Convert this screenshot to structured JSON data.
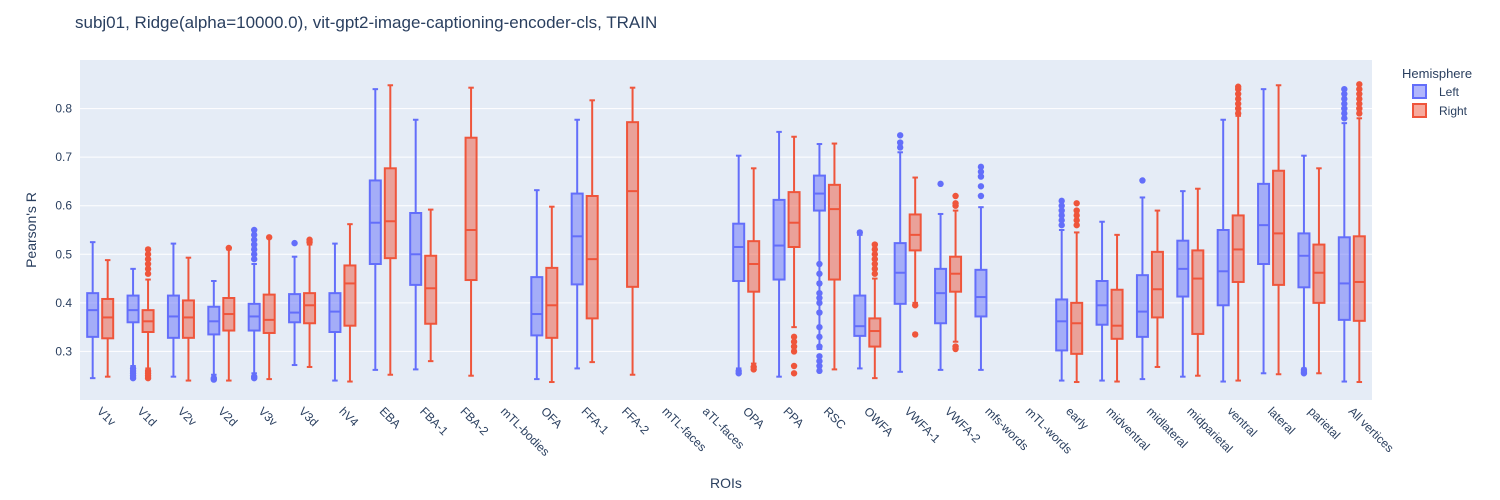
{
  "chart_data": {
    "type": "box",
    "title": "subj01, Ridge(alpha=10000.0), vit-gpt2-image-captioning-encoder-cls, TRAIN",
    "xlabel": "ROIs",
    "ylabel": "Pearson's R",
    "ylim": [
      0.2,
      0.9
    ],
    "yticks": [
      0.3,
      0.4,
      0.5,
      0.6,
      0.7,
      0.8
    ],
    "ytick_labels": [
      "0.3",
      "0.4",
      "0.5",
      "0.6",
      "0.7",
      "0.8"
    ],
    "grid": true,
    "legend": {
      "title": "Hemisphere",
      "position": "top-right"
    },
    "categories": [
      "V1v",
      "V1d",
      "V2v",
      "V2d",
      "V3v",
      "V3d",
      "hV4",
      "EBA",
      "FBA-1",
      "FBA-2",
      "mTL-bodies",
      "OFA",
      "FFA-1",
      "FFA-2",
      "mTL-faces",
      "aTL-faces",
      "OPA",
      "PPA",
      "RSC",
      "OWFA",
      "VWFA-1",
      "VWFA-2",
      "mfs-words",
      "mTL-words",
      "early",
      "midventral",
      "midlateral",
      "midparietal",
      "ventral",
      "lateral",
      "parietal",
      "All vertices"
    ],
    "series": [
      {
        "name": "Left",
        "color": "#636efa",
        "boxes": [
          {
            "min": 0.245,
            "q1": 0.33,
            "median": 0.385,
            "q3": 0.42,
            "max": 0.525,
            "outliers": []
          },
          {
            "min": 0.27,
            "q1": 0.36,
            "median": 0.385,
            "q3": 0.415,
            "max": 0.47,
            "outliers": [
              0.245,
              0.25,
              0.255,
              0.26,
              0.265
            ]
          },
          {
            "min": 0.248,
            "q1": 0.328,
            "median": 0.372,
            "q3": 0.415,
            "max": 0.522,
            "outliers": []
          },
          {
            "min": 0.252,
            "q1": 0.335,
            "median": 0.362,
            "q3": 0.392,
            "max": 0.445,
            "outliers": [
              0.242,
              0.245
            ]
          },
          {
            "min": 0.255,
            "q1": 0.343,
            "median": 0.372,
            "q3": 0.398,
            "max": 0.48,
            "outliers": [
              0.245,
              0.248,
              0.49,
              0.5,
              0.51,
              0.52,
              0.53,
              0.54,
              0.55
            ]
          },
          {
            "min": 0.272,
            "q1": 0.36,
            "median": 0.38,
            "q3": 0.418,
            "max": 0.495,
            "outliers": [
              0.523
            ]
          },
          {
            "min": 0.24,
            "q1": 0.34,
            "median": 0.382,
            "q3": 0.42,
            "max": 0.522,
            "outliers": []
          },
          {
            "min": 0.262,
            "q1": 0.48,
            "median": 0.565,
            "q3": 0.652,
            "max": 0.84,
            "outliers": []
          },
          {
            "min": 0.263,
            "q1": 0.437,
            "median": 0.5,
            "q3": 0.585,
            "max": 0.777,
            "outliers": []
          },
          null,
          null,
          {
            "min": 0.243,
            "q1": 0.333,
            "median": 0.377,
            "q3": 0.453,
            "max": 0.632,
            "outliers": []
          },
          {
            "min": 0.265,
            "q1": 0.438,
            "median": 0.537,
            "q3": 0.625,
            "max": 0.777,
            "outliers": []
          },
          null,
          null,
          null,
          {
            "min": 0.265,
            "q1": 0.445,
            "median": 0.515,
            "q3": 0.563,
            "max": 0.703,
            "outliers": [
              0.255,
              0.26
            ]
          },
          {
            "min": 0.248,
            "q1": 0.448,
            "median": 0.518,
            "q3": 0.612,
            "max": 0.752,
            "outliers": []
          },
          {
            "min": 0.305,
            "q1": 0.59,
            "median": 0.625,
            "q3": 0.662,
            "max": 0.727,
            "outliers": [
              0.26,
              0.27,
              0.28,
              0.29,
              0.31,
              0.33,
              0.35,
              0.38,
              0.4,
              0.41,
              0.42,
              0.44,
              0.46,
              0.48
            ]
          },
          {
            "min": 0.265,
            "q1": 0.332,
            "median": 0.352,
            "q3": 0.415,
            "max": 0.54,
            "outliers": [
              0.545
            ]
          },
          {
            "min": 0.258,
            "q1": 0.398,
            "median": 0.462,
            "q3": 0.523,
            "max": 0.71,
            "outliers": [
              0.72,
              0.73,
              0.745
            ]
          },
          {
            "min": 0.262,
            "q1": 0.358,
            "median": 0.42,
            "q3": 0.47,
            "max": 0.583,
            "outliers": [
              0.645
            ]
          },
          {
            "min": 0.262,
            "q1": 0.372,
            "median": 0.412,
            "q3": 0.468,
            "max": 0.597,
            "outliers": [
              0.62,
              0.64,
              0.66,
              0.67,
              0.68
            ]
          },
          null,
          {
            "min": 0.24,
            "q1": 0.302,
            "median": 0.362,
            "q3": 0.407,
            "max": 0.55,
            "outliers": [
              0.56,
              0.57,
              0.58,
              0.59,
              0.6,
              0.61
            ]
          },
          {
            "min": 0.24,
            "q1": 0.355,
            "median": 0.395,
            "q3": 0.445,
            "max": 0.567,
            "outliers": []
          },
          {
            "min": 0.243,
            "q1": 0.33,
            "median": 0.382,
            "q3": 0.457,
            "max": 0.617,
            "outliers": [
              0.652
            ]
          },
          {
            "min": 0.248,
            "q1": 0.413,
            "median": 0.47,
            "q3": 0.528,
            "max": 0.63,
            "outliers": []
          },
          {
            "min": 0.238,
            "q1": 0.395,
            "median": 0.465,
            "q3": 0.55,
            "max": 0.777,
            "outliers": []
          },
          {
            "min": 0.255,
            "q1": 0.48,
            "median": 0.56,
            "q3": 0.645,
            "max": 0.84,
            "outliers": []
          },
          {
            "min": 0.265,
            "q1": 0.432,
            "median": 0.497,
            "q3": 0.543,
            "max": 0.703,
            "outliers": [
              0.255,
              0.258,
              0.262
            ]
          },
          {
            "min": 0.238,
            "q1": 0.365,
            "median": 0.44,
            "q3": 0.535,
            "max": 0.77,
            "outliers": [
              0.78,
              0.79,
              0.8,
              0.81,
              0.82,
              0.83,
              0.84
            ]
          }
        ]
      },
      {
        "name": "Right",
        "color": "#ef553b",
        "boxes": [
          {
            "min": 0.248,
            "q1": 0.327,
            "median": 0.37,
            "q3": 0.408,
            "max": 0.488,
            "outliers": []
          },
          {
            "min": 0.265,
            "q1": 0.34,
            "median": 0.362,
            "q3": 0.385,
            "max": 0.448,
            "outliers": [
              0.245,
              0.25,
              0.255,
              0.26,
              0.46,
              0.47,
              0.48,
              0.49,
              0.5,
              0.51
            ]
          },
          {
            "min": 0.24,
            "q1": 0.328,
            "median": 0.37,
            "q3": 0.405,
            "max": 0.493,
            "outliers": []
          },
          {
            "min": 0.24,
            "q1": 0.343,
            "median": 0.377,
            "q3": 0.41,
            "max": 0.51,
            "outliers": [
              0.513
            ]
          },
          {
            "min": 0.243,
            "q1": 0.338,
            "median": 0.365,
            "q3": 0.417,
            "max": 0.533,
            "outliers": [
              0.535
            ]
          },
          {
            "min": 0.268,
            "q1": 0.358,
            "median": 0.395,
            "q3": 0.42,
            "max": 0.52,
            "outliers": [
              0.525,
              0.53
            ]
          },
          {
            "min": 0.238,
            "q1": 0.353,
            "median": 0.44,
            "q3": 0.477,
            "max": 0.562,
            "outliers": []
          },
          {
            "min": 0.252,
            "q1": 0.492,
            "median": 0.568,
            "q3": 0.677,
            "max": 0.848,
            "outliers": []
          },
          {
            "min": 0.28,
            "q1": 0.357,
            "median": 0.43,
            "q3": 0.497,
            "max": 0.592,
            "outliers": []
          },
          {
            "min": 0.25,
            "q1": 0.447,
            "median": 0.55,
            "q3": 0.74,
            "max": 0.843,
            "outliers": []
          },
          null,
          {
            "min": 0.237,
            "q1": 0.328,
            "median": 0.395,
            "q3": 0.472,
            "max": 0.598,
            "outliers": []
          },
          {
            "min": 0.278,
            "q1": 0.368,
            "median": 0.49,
            "q3": 0.62,
            "max": 0.817,
            "outliers": []
          },
          {
            "min": 0.252,
            "q1": 0.433,
            "median": 0.63,
            "q3": 0.772,
            "max": 0.843,
            "outliers": []
          },
          null,
          null,
          {
            "min": 0.275,
            "q1": 0.423,
            "median": 0.48,
            "q3": 0.527,
            "max": 0.677,
            "outliers": [
              0.263,
              0.268
            ]
          },
          {
            "min": 0.35,
            "q1": 0.515,
            "median": 0.565,
            "q3": 0.628,
            "max": 0.742,
            "outliers": [
              0.255,
              0.27,
              0.3,
              0.31,
              0.32,
              0.33
            ]
          },
          {
            "min": 0.263,
            "q1": 0.448,
            "median": 0.593,
            "q3": 0.643,
            "max": 0.728,
            "outliers": []
          },
          {
            "min": 0.245,
            "q1": 0.31,
            "median": 0.342,
            "q3": 0.368,
            "max": 0.45,
            "outliers": [
              0.46,
              0.47,
              0.48,
              0.49,
              0.5,
              0.51,
              0.52
            ]
          },
          {
            "min": 0.4,
            "q1": 0.508,
            "median": 0.54,
            "q3": 0.582,
            "max": 0.658,
            "outliers": [
              0.335,
              0.395
            ]
          },
          {
            "min": 0.32,
            "q1": 0.423,
            "median": 0.46,
            "q3": 0.495,
            "max": 0.59,
            "outliers": [
              0.305,
              0.31,
              0.6,
              0.605,
              0.62
            ]
          },
          null,
          null,
          {
            "min": 0.237,
            "q1": 0.295,
            "median": 0.358,
            "q3": 0.4,
            "max": 0.545,
            "outliers": [
              0.56,
              0.57,
              0.58,
              0.59,
              0.605
            ]
          },
          {
            "min": 0.238,
            "q1": 0.326,
            "median": 0.353,
            "q3": 0.427,
            "max": 0.54,
            "outliers": []
          },
          {
            "min": 0.268,
            "q1": 0.37,
            "median": 0.428,
            "q3": 0.505,
            "max": 0.59,
            "outliers": []
          },
          {
            "min": 0.25,
            "q1": 0.336,
            "median": 0.45,
            "q3": 0.508,
            "max": 0.635,
            "outliers": []
          },
          {
            "min": 0.24,
            "q1": 0.443,
            "median": 0.51,
            "q3": 0.58,
            "max": 0.785,
            "outliers": [
              0.79,
              0.8,
              0.81,
              0.82,
              0.83,
              0.84,
              0.845
            ]
          },
          {
            "min": 0.253,
            "q1": 0.437,
            "median": 0.543,
            "q3": 0.672,
            "max": 0.848,
            "outliers": []
          },
          {
            "min": 0.255,
            "q1": 0.4,
            "median": 0.462,
            "q3": 0.52,
            "max": 0.677,
            "outliers": []
          },
          {
            "min": 0.237,
            "q1": 0.363,
            "median": 0.443,
            "q3": 0.537,
            "max": 0.78,
            "outliers": [
              0.79,
              0.8,
              0.81,
              0.82,
              0.83,
              0.84,
              0.85
            ]
          }
        ]
      }
    ]
  }
}
